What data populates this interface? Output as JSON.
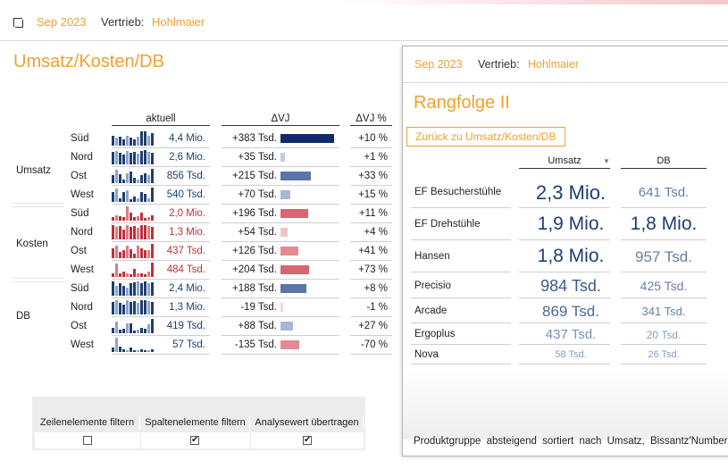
{
  "header": {
    "period": "Sep 2023",
    "sales_label": "Vertrieb:",
    "sales_value": "Hohlmaier"
  },
  "main": {
    "title": "Umsatz/Kosten/DB",
    "columns": {
      "actual": "aktuell",
      "delta_vj": "ΔVJ",
      "delta_vj_pct": "ΔVJ %"
    },
    "groups": [
      {
        "label": "Umsatz",
        "color": "#1f3f72",
        "rows": [
          {
            "region": "Süd",
            "actual": "4,4 Mio.",
            "delta": "+383 Tsd.",
            "delta_value": 383,
            "pct": "+10 %",
            "bar_color": "#0e2a6b",
            "spark": [
              10,
              8,
              9,
              6,
              10,
              8,
              6,
              9,
              14,
              14,
              10,
              12
            ]
          },
          {
            "region": "Nord",
            "actual": "2,6 Mio.",
            "delta": "+35 Tsd.",
            "delta_value": 35,
            "pct": "+1 %",
            "bar_color": "#c5cde3",
            "spark": [
              13,
              14,
              12,
              10,
              14,
              12,
              13,
              11,
              14,
              15,
              13,
              12
            ]
          },
          {
            "region": "Ost",
            "actual": "856 Tsd.",
            "delta": "+215 Tsd.",
            "delta_value": 215,
            "pct": "+33 %",
            "bar_color": "#5a75a8",
            "spark": [
              8,
              14,
              9,
              4,
              10,
              12,
              6,
              4,
              8,
              10,
              8,
              15
            ]
          },
          {
            "region": "West",
            "actual": "540 Tsd.",
            "delta": "+70 Tsd.",
            "delta_value": 70,
            "pct": "+15 %",
            "bar_color": "#a9b6d6",
            "spark": [
              10,
              14,
              4,
              10,
              12,
              3,
              6,
              4,
              10,
              8,
              4,
              15
            ]
          }
        ]
      },
      {
        "label": "Kosten",
        "color": "#c0303a",
        "rows": [
          {
            "region": "Süd",
            "actual": "2,0 Mio.",
            "delta": "+196 Tsd.",
            "delta_value": 196,
            "pct": "+11 %",
            "bar_color": "#d86670",
            "spark": [
              4,
              6,
              5,
              4,
              15,
              8,
              4,
              5,
              8,
              3,
              4,
              6
            ]
          },
          {
            "region": "Nord",
            "actual": "1,3 Mio.",
            "delta": "+54 Tsd.",
            "delta_value": 54,
            "pct": "+4 %",
            "bar_color": "#f0c3c7",
            "spark": [
              14,
              12,
              13,
              10,
              14,
              12,
              13,
              11,
              14,
              14,
              13,
              12
            ]
          },
          {
            "region": "Ost",
            "actual": "437 Tsd.",
            "delta": "+126 Tsd.",
            "delta_value": 126,
            "pct": "+41 %",
            "bar_color": "#e38b92",
            "spark": [
              10,
              12,
              6,
              8,
              12,
              9,
              4,
              12,
              10,
              8,
              8,
              14
            ]
          },
          {
            "region": "West",
            "actual": "484 Tsd.",
            "delta": "+204 Tsd.",
            "delta_value": 204,
            "pct": "+73 %",
            "bar_color": "#d86670",
            "spark": [
              4,
              14,
              4,
              6,
              4,
              3,
              8,
              4,
              4,
              3,
              6,
              15
            ]
          }
        ]
      },
      {
        "label": "DB",
        "color": "#1f3f72",
        "rows": [
          {
            "region": "Süd",
            "actual": "2,4 Mio.",
            "delta": "+188 Tsd.",
            "delta_value": 188,
            "pct": "+8 %",
            "bar_color": "#5a75a8",
            "spark": [
              14,
              10,
              12,
              10,
              8,
              12,
              13,
              14,
              12,
              14,
              12,
              13
            ]
          },
          {
            "region": "Nord",
            "actual": "1,3 Mio.",
            "delta": "-19 Tsd.",
            "delta_value": -19,
            "pct": "-1 %",
            "bar_color": "#f4d6d9",
            "spark": [
              12,
              14,
              11,
              10,
              14,
              12,
              13,
              11,
              14,
              14,
              13,
              12
            ]
          },
          {
            "region": "Ost",
            "actual": "419 Tsd.",
            "delta": "+88 Tsd.",
            "delta_value": 88,
            "pct": "+27 %",
            "bar_color": "#a9b6d6",
            "spark": [
              6,
              12,
              4,
              5,
              10,
              10,
              3,
              4,
              6,
              5,
              9,
              15
            ]
          },
          {
            "region": "West",
            "actual": "57 Tsd.",
            "delta": "-135 Tsd.",
            "delta_value": -135,
            "pct": "-70 %",
            "bar_color": "#e38b92",
            "spark": [
              4,
              14,
              5,
              3,
              2,
              4,
              2,
              2,
              3,
              2,
              2,
              3
            ]
          }
        ]
      }
    ],
    "delta_scale_max": 383
  },
  "filters": {
    "labels": [
      "Zeilenelemente filtern",
      "Spaltenelemente filtern",
      "Analysewert übertragen"
    ],
    "checked": [
      false,
      true,
      true
    ]
  },
  "panel": {
    "period": "Sep 2023",
    "sales_label": "Vertrieb:",
    "sales_value": "Hohlmaier",
    "title": "Rangfolge II",
    "back_button": "Zurück zu Umsatz/Kosten/DB",
    "col_umsatz": "Umsatz",
    "col_db": "DB",
    "sort_icon": "▼",
    "rows": [
      {
        "name": "EF Besucherstühle",
        "umsatz": "2,3 Mio.",
        "db": "641 Tsd."
      },
      {
        "name": "EF Drehstühle",
        "umsatz": "1,9 Mio.",
        "db": "1,8 Mio."
      },
      {
        "name": "Hansen",
        "umsatz": "1,8 Mio.",
        "db": "957 Tsd."
      },
      {
        "name": "Precisio",
        "umsatz": "984 Tsd.",
        "db": "425 Tsd."
      },
      {
        "name": "Arcade",
        "umsatz": "869 Tsd.",
        "db": "341 Tsd."
      },
      {
        "name": "Ergoplus",
        "umsatz": "437 Tsd.",
        "db": "20 Tsd."
      },
      {
        "name": "Nova",
        "umsatz": "58 Tsd.",
        "db": "26 Tsd."
      }
    ],
    "footer": "Produktgruppe absteigend sortiert nach Umsatz, Bissantz'Numbers"
  }
}
